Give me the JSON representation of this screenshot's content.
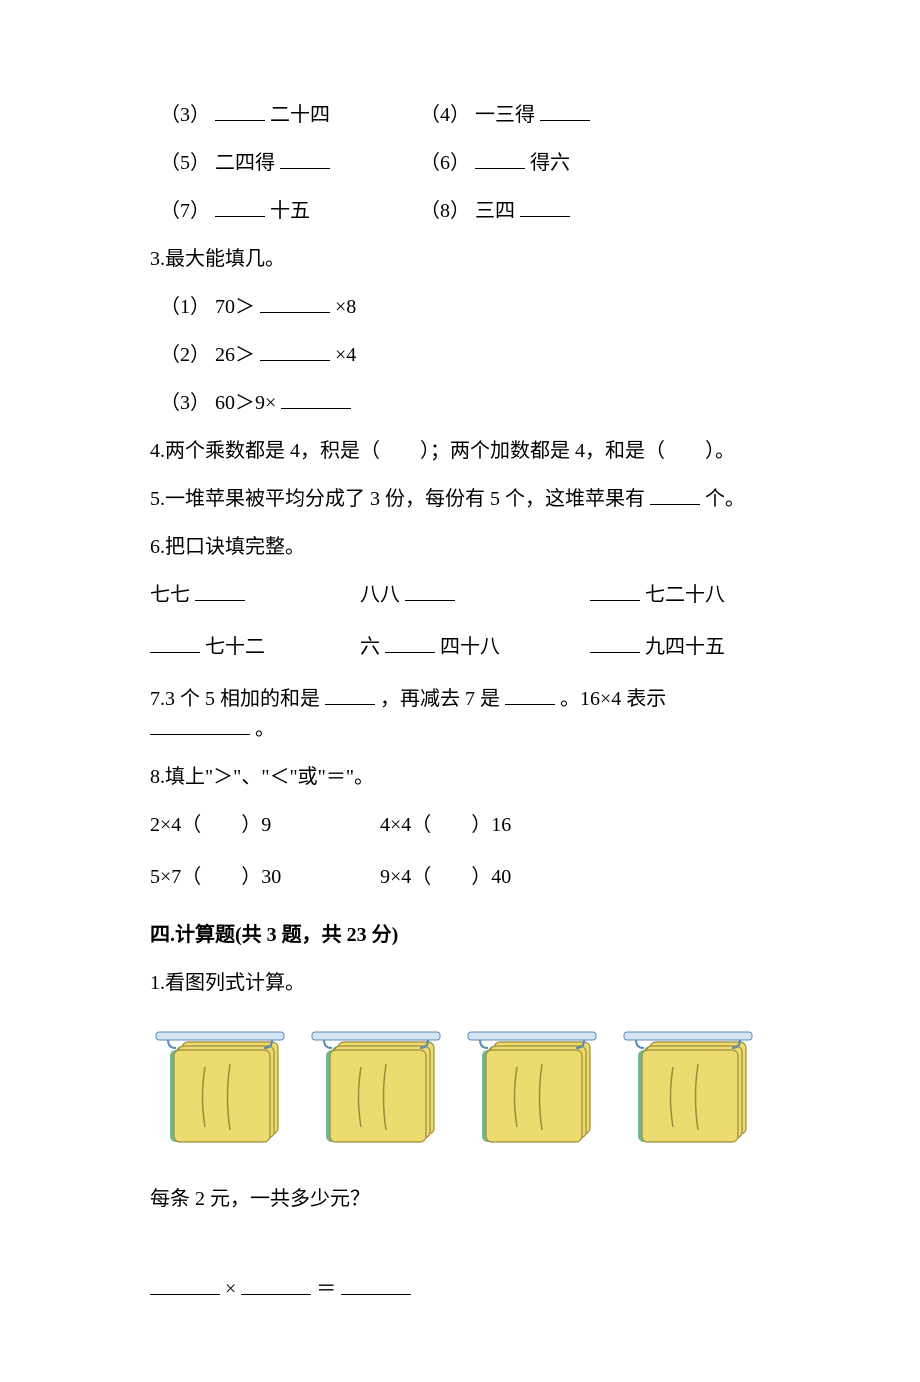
{
  "q2": {
    "items": [
      {
        "num": "（3）",
        "before": "",
        "after": "二十四"
      },
      {
        "num": "（4）",
        "before": "一三得",
        "after": ""
      },
      {
        "num": "（5）",
        "before": "二四得",
        "after": ""
      },
      {
        "num": "（6）",
        "before": "",
        "after": "得六"
      },
      {
        "num": "（7）",
        "before": "",
        "after": "十五"
      },
      {
        "num": "（8）",
        "before": "三四",
        "after": ""
      }
    ]
  },
  "q3": {
    "title": "3.最大能填几。",
    "items": [
      {
        "num": "（1）",
        "left": "70＞",
        "right": "×8"
      },
      {
        "num": "（2）",
        "left": "26＞",
        "right": "×4"
      },
      {
        "num": "（3）",
        "left": "60＞9×",
        "right": ""
      }
    ]
  },
  "q4": "4.两个乘数都是 4，积是（　　）；两个加数都是 4，和是（　　）。",
  "q5": {
    "before": "5.一堆苹果被平均分成了 3 份，每份有 5 个，这堆苹果有",
    "after": "个。"
  },
  "q6": {
    "title": "6.把口诀填完整。",
    "row1": [
      {
        "before": "七七",
        "after": ""
      },
      {
        "before": "八八",
        "after": ""
      },
      {
        "before": "",
        "after": "七二十八"
      }
    ],
    "row2": [
      {
        "before": "",
        "after": "七十二"
      },
      {
        "before": "六",
        "after": "四十八"
      },
      {
        "before": "",
        "after": "九四十五"
      }
    ]
  },
  "q7": {
    "p1": "7.3 个 5 相加的和是",
    "p2": "，再减去 7 是",
    "p3": "。16×4 表示",
    "p4": "。"
  },
  "q8": {
    "title": "8.填上\"＞\"、\"＜\"或\"＝\"。",
    "rows": [
      [
        {
          "l": "2×4（",
          "r": "）9"
        },
        {
          "l": "4×4（",
          "r": "）16"
        }
      ],
      [
        {
          "l": "5×7（",
          "r": "）30"
        },
        {
          "l": "9×4（",
          "r": "）40"
        }
      ]
    ]
  },
  "section4": {
    "title": "四.计算题(共 3 题，共 23 分)",
    "q1": {
      "title": "1.看图列式计算。",
      "prompt": "每条 2 元，一共多少元？",
      "eq_x": "×",
      "eq_eq": "＝"
    }
  },
  "towel": {
    "count": 4,
    "towels_per_group": 3,
    "colors": {
      "bg_shadow": "#6fb890",
      "towel_fill": "#ecdb6e",
      "towel_stroke": "#a08a3a",
      "bar_fill": "#d5e4f2",
      "bar_stroke": "#5c88b5",
      "hook": "#5c88b5",
      "fold_line": "#a08a3a"
    }
  }
}
